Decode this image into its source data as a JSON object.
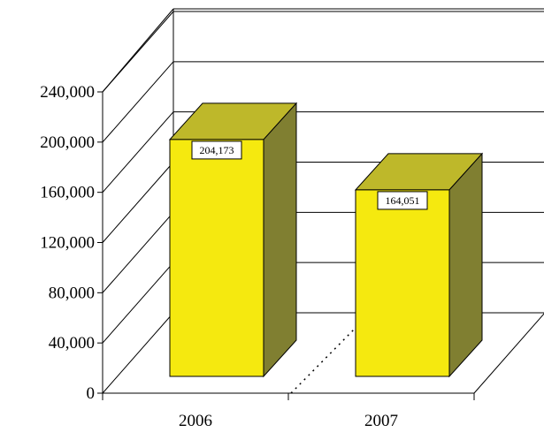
{
  "chart_data": {
    "type": "bar",
    "style": "3d",
    "categories": [
      "2006",
      "2007"
    ],
    "values": [
      204173,
      164051
    ],
    "value_labels": [
      "204,173",
      "164,051"
    ],
    "ylim": [
      0,
      240000
    ],
    "yticks": [
      0,
      40000,
      80000,
      120000,
      160000,
      200000,
      240000
    ],
    "ytick_labels": [
      "0",
      "40,000",
      "80,000",
      "120,000",
      "160,000",
      "200,000",
      "240,000"
    ],
    "grid": true,
    "legend": "none",
    "title": "",
    "xlabel": "",
    "ylabel": "",
    "colors": {
      "bar_front": "#F5E90F",
      "bar_side": "#807F31",
      "bar_top": "#BEB82A",
      "outline": "#000000",
      "grid": "#000000"
    }
  }
}
